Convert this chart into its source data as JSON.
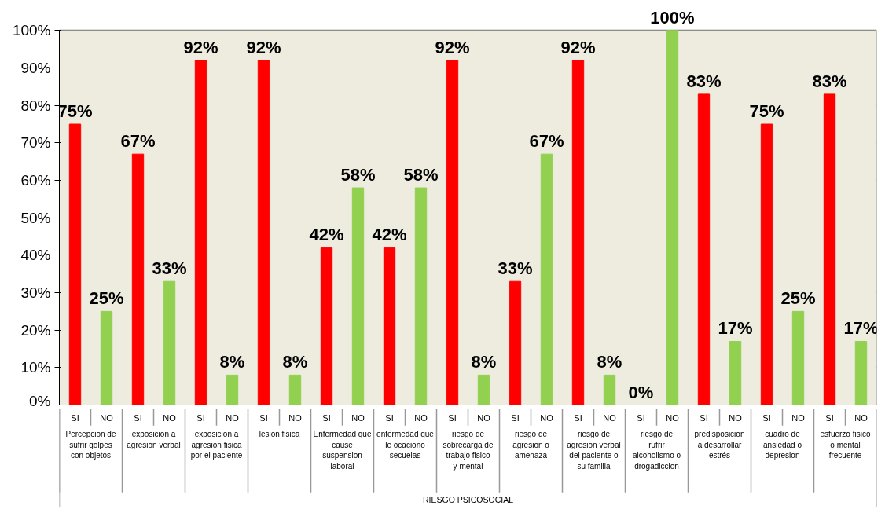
{
  "chart_data": {
    "type": "bar",
    "xlabel": "RIESGO PSICOSOCIAL",
    "categories": [
      "Percepcion de sufrir golpes con objetos",
      "exposicion a agresion verbal",
      "exposicion a agresion fisica por el paciente",
      "lesion fisica",
      "Enfermedad que cause suspension laboral",
      "enfermedad que le ocaciono secuelas",
      "riesgo de sobrecarga de trabajo fisico y mental",
      "riesgo de agresion o amenaza",
      "riesgo de agresion verbal del paciente o su familia",
      "riesgo de rufrir alcoholismo o drogadiccion",
      "predisposicion a desarrollar estrés",
      "cuadro de ansiedad o depresion",
      "esfuerzo fisico o mental frecuente"
    ],
    "series": [
      {
        "name": "SI",
        "color": "#ff0000",
        "values": [
          75,
          67,
          92,
          92,
          42,
          42,
          92,
          33,
          92,
          0,
          83,
          75,
          83
        ],
        "value_labels": [
          "75%",
          "67%",
          "92%",
          "92%",
          "42%",
          "42%",
          "92%",
          "33%",
          "92%",
          "0%",
          "83%",
          "75%",
          "83%"
        ]
      },
      {
        "name": "NO",
        "color": "#92d050",
        "values": [
          25,
          33,
          8,
          8,
          58,
          58,
          8,
          67,
          8,
          100,
          17,
          25,
          17
        ],
        "value_labels": [
          "25%",
          "33%",
          "8%",
          "8%",
          "58%",
          "58%",
          "8%",
          "67%",
          "8%",
          "100%",
          "17%",
          "25%",
          "17%"
        ]
      }
    ],
    "ylim": [
      0,
      100
    ],
    "yticks": [
      {
        "value": 0,
        "label": "0%"
      },
      {
        "value": 10,
        "label": "10%"
      },
      {
        "value": 20,
        "label": "20%"
      },
      {
        "value": 30,
        "label": "30%"
      },
      {
        "value": 40,
        "label": "40%"
      },
      {
        "value": 50,
        "label": "50%"
      },
      {
        "value": 60,
        "label": "60%"
      },
      {
        "value": 70,
        "label": "70%"
      },
      {
        "value": 80,
        "label": "80%"
      },
      {
        "value": 90,
        "label": "90%"
      },
      {
        "value": 100,
        "label": "100%"
      }
    ],
    "grid": "y"
  }
}
